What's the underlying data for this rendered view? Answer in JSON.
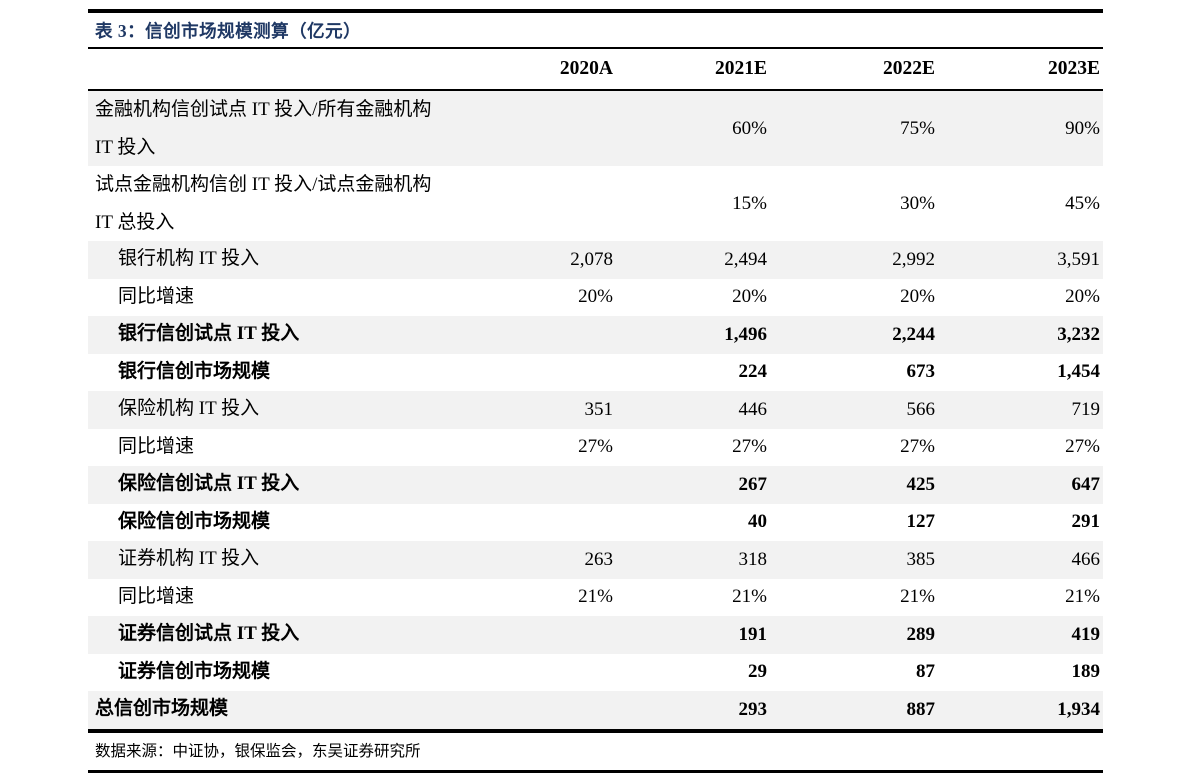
{
  "table": {
    "title": "表 3：信创市场规模测算（亿元）",
    "columns": [
      "2020A",
      "2021E",
      "2022E",
      "2023E"
    ],
    "rows": [
      {
        "label_lines": [
          "金融机构信创试点 IT 投入/所有金融机构",
          "IT 投入"
        ],
        "values": [
          "",
          "60%",
          "75%",
          "90%"
        ],
        "bold": false,
        "indent": false,
        "shaded": true
      },
      {
        "label_lines": [
          "试点金融机构信创 IT 投入/试点金融机构",
          "IT 总投入"
        ],
        "values": [
          "",
          "15%",
          "30%",
          "45%"
        ],
        "bold": false,
        "indent": false,
        "shaded": false
      },
      {
        "label_lines": [
          "银行机构 IT 投入"
        ],
        "values": [
          "2,078",
          "2,494",
          "2,992",
          "3,591"
        ],
        "bold": false,
        "indent": true,
        "shaded": true
      },
      {
        "label_lines": [
          "同比增速"
        ],
        "values": [
          "20%",
          "20%",
          "20%",
          "20%"
        ],
        "bold": false,
        "indent": true,
        "shaded": false
      },
      {
        "label_lines": [
          "银行信创试点 IT 投入"
        ],
        "values": [
          "",
          "1,496",
          "2,244",
          "3,232"
        ],
        "bold": true,
        "indent": true,
        "shaded": true
      },
      {
        "label_lines": [
          "银行信创市场规模"
        ],
        "values": [
          "",
          "224",
          "673",
          "1,454"
        ],
        "bold": true,
        "indent": true,
        "shaded": false
      },
      {
        "label_lines": [
          "保险机构 IT 投入"
        ],
        "values": [
          "351",
          "446",
          "566",
          "719"
        ],
        "bold": false,
        "indent": true,
        "shaded": true
      },
      {
        "label_lines": [
          "同比增速"
        ],
        "values": [
          "27%",
          "27%",
          "27%",
          "27%"
        ],
        "bold": false,
        "indent": true,
        "shaded": false
      },
      {
        "label_lines": [
          "保险信创试点 IT 投入"
        ],
        "values": [
          "",
          "267",
          "425",
          "647"
        ],
        "bold": true,
        "indent": true,
        "shaded": true
      },
      {
        "label_lines": [
          "保险信创市场规模"
        ],
        "values": [
          "",
          "40",
          "127",
          "291"
        ],
        "bold": true,
        "indent": true,
        "shaded": false
      },
      {
        "label_lines": [
          "证券机构 IT 投入"
        ],
        "values": [
          "263",
          "318",
          "385",
          "466"
        ],
        "bold": false,
        "indent": true,
        "shaded": true
      },
      {
        "label_lines": [
          "同比增速"
        ],
        "values": [
          "21%",
          "21%",
          "21%",
          "21%"
        ],
        "bold": false,
        "indent": true,
        "shaded": false
      },
      {
        "label_lines": [
          "证券信创试点 IT 投入"
        ],
        "values": [
          "",
          "191",
          "289",
          "419"
        ],
        "bold": true,
        "indent": true,
        "shaded": true
      },
      {
        "label_lines": [
          "证券信创市场规模"
        ],
        "values": [
          "",
          "29",
          "87",
          "189"
        ],
        "bold": true,
        "indent": true,
        "shaded": false
      },
      {
        "label_lines": [
          "总信创市场规模"
        ],
        "values": [
          "",
          "293",
          "887",
          "1,934"
        ],
        "bold": true,
        "indent": false,
        "shaded": true
      }
    ],
    "source_note": "数据来源：中证协，银保监会，东吴证券研究所"
  },
  "colors": {
    "title_text": "#1F3864",
    "row_shade": "#F2F2F2",
    "rule": "#000000"
  }
}
